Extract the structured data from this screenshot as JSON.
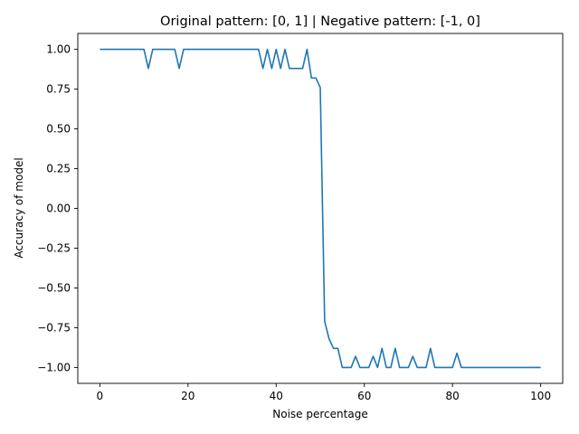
{
  "chart_data": {
    "type": "line",
    "title": "Original pattern: [0, 1] | Negative pattern: [-1, 0]",
    "xlabel": "Noise percentage",
    "ylabel": "Accuracy of model",
    "xlim": [
      -5,
      105
    ],
    "ylim": [
      -1.1,
      1.1
    ],
    "xticks": [
      0,
      20,
      40,
      60,
      80,
      100
    ],
    "yticks": [
      -1.0,
      -0.75,
      -0.5,
      -0.25,
      0.0,
      0.25,
      0.5,
      0.75,
      1.0
    ],
    "xtick_labels": [
      "0",
      "20",
      "40",
      "60",
      "80",
      "100"
    ],
    "ytick_labels": [
      "−1.00",
      "−0.75",
      "−0.50",
      "−0.25",
      "0.00",
      "0.25",
      "0.50",
      "0.75",
      "1.00"
    ],
    "grid": false,
    "series": [
      {
        "color": "#1f77b4",
        "x": [
          0,
          1,
          2,
          3,
          4,
          5,
          6,
          7,
          8,
          9,
          10,
          11,
          12,
          13,
          14,
          15,
          16,
          17,
          18,
          19,
          20,
          21,
          22,
          23,
          24,
          25,
          26,
          27,
          28,
          29,
          30,
          31,
          32,
          33,
          34,
          35,
          36,
          37,
          38,
          39,
          40,
          41,
          42,
          43,
          44,
          45,
          46,
          47,
          48,
          49,
          50,
          51,
          52,
          53,
          54,
          55,
          56,
          57,
          58,
          59,
          60,
          61,
          62,
          63,
          64,
          65,
          66,
          67,
          68,
          69,
          70,
          71,
          72,
          73,
          74,
          75,
          76,
          77,
          78,
          79,
          80,
          81,
          82,
          83,
          84,
          85,
          86,
          87,
          88,
          89,
          90,
          91,
          92,
          93,
          94,
          95,
          96,
          97,
          98,
          99,
          100
        ],
        "y": [
          1,
          1,
          1,
          1,
          1,
          1,
          1,
          1,
          1,
          1,
          1,
          0.88,
          1,
          1,
          1,
          1,
          1,
          1,
          0.88,
          1,
          1,
          1,
          1,
          1,
          1,
          1,
          1,
          1,
          1,
          1,
          1,
          1,
          1,
          1,
          1,
          1,
          1,
          0.88,
          1,
          0.88,
          1,
          0.88,
          1,
          0.88,
          0.88,
          0.88,
          0.88,
          1,
          0.82,
          0.82,
          0.76,
          -0.71,
          -0.82,
          -0.88,
          -0.88,
          -1,
          -1,
          -1,
          -0.93,
          -1,
          -1,
          -1,
          -0.93,
          -1,
          -0.88,
          -1,
          -1,
          -0.88,
          -1,
          -1,
          -1,
          -0.93,
          -1,
          -1,
          -1,
          -0.88,
          -1,
          -1,
          -1,
          -1,
          -1,
          -0.91,
          -1,
          -1,
          -1,
          -1,
          -1,
          -1,
          -1,
          -1,
          -1,
          -1,
          -1,
          -1,
          -1,
          -1,
          -1,
          -1,
          -1,
          -1,
          -1
        ]
      }
    ]
  }
}
